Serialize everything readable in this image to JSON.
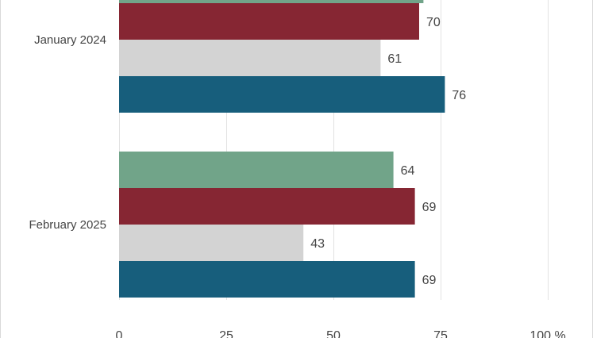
{
  "chart_data": {
    "type": "bar",
    "orientation": "horizontal",
    "categories": [
      "January 2024",
      "February 2025"
    ],
    "series": [
      {
        "color": "#71a489",
        "values": [
          71,
          64
        ]
      },
      {
        "color": "#862633",
        "values": [
          70,
          69
        ]
      },
      {
        "color": "#d3d3d3",
        "values": [
          61,
          43
        ]
      },
      {
        "color": "#175e7c",
        "values": [
          76,
          69
        ]
      }
    ],
    "data_labels": [
      [
        null,
        "64"
      ],
      [
        "70",
        "69"
      ],
      [
        "61",
        "43"
      ],
      [
        "76",
        "69"
      ]
    ],
    "x_ticks": [
      "0",
      "25",
      "50",
      "75",
      "100 %"
    ],
    "xlim": [
      0,
      100
    ],
    "grid": true,
    "legend": "none"
  }
}
